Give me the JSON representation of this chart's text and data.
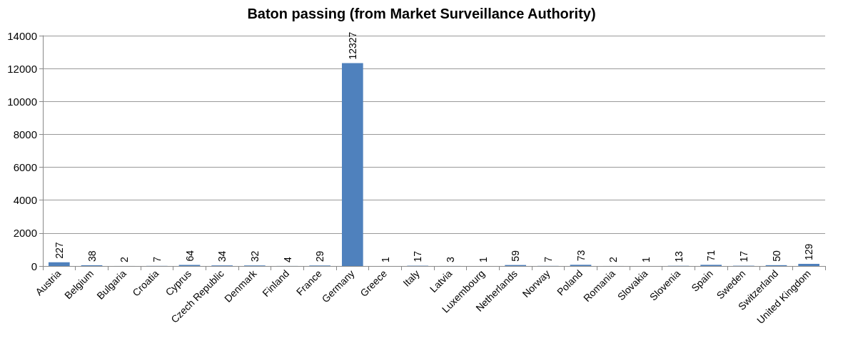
{
  "chart_data": {
    "type": "bar",
    "title": "Baton passing (from Market Surveillance Authority)",
    "categories": [
      "Austria",
      "Belgium",
      "Bulgaria",
      "Croatia",
      "Cyprus",
      "Czech Republic",
      "Denmark",
      "Finland",
      "France",
      "Germany",
      "Greece",
      "Italy",
      "Latvia",
      "Luxembourg",
      "Netherlands",
      "Norway",
      "Poland",
      "Romania",
      "Slovakia",
      "Slovenia",
      "Spain",
      "Sweden",
      "Switzerland",
      "United Kingdom"
    ],
    "values": [
      227,
      38,
      2,
      7,
      64,
      34,
      32,
      4,
      29,
      12327,
      1,
      17,
      3,
      1,
      59,
      7,
      73,
      2,
      1,
      13,
      71,
      17,
      50,
      129
    ],
    "color": "#4f81bd",
    "ylim": [
      0,
      14000
    ],
    "yticks": [
      0,
      2000,
      4000,
      6000,
      8000,
      10000,
      12000,
      14000
    ],
    "grid": "y",
    "data_labels": true
  }
}
